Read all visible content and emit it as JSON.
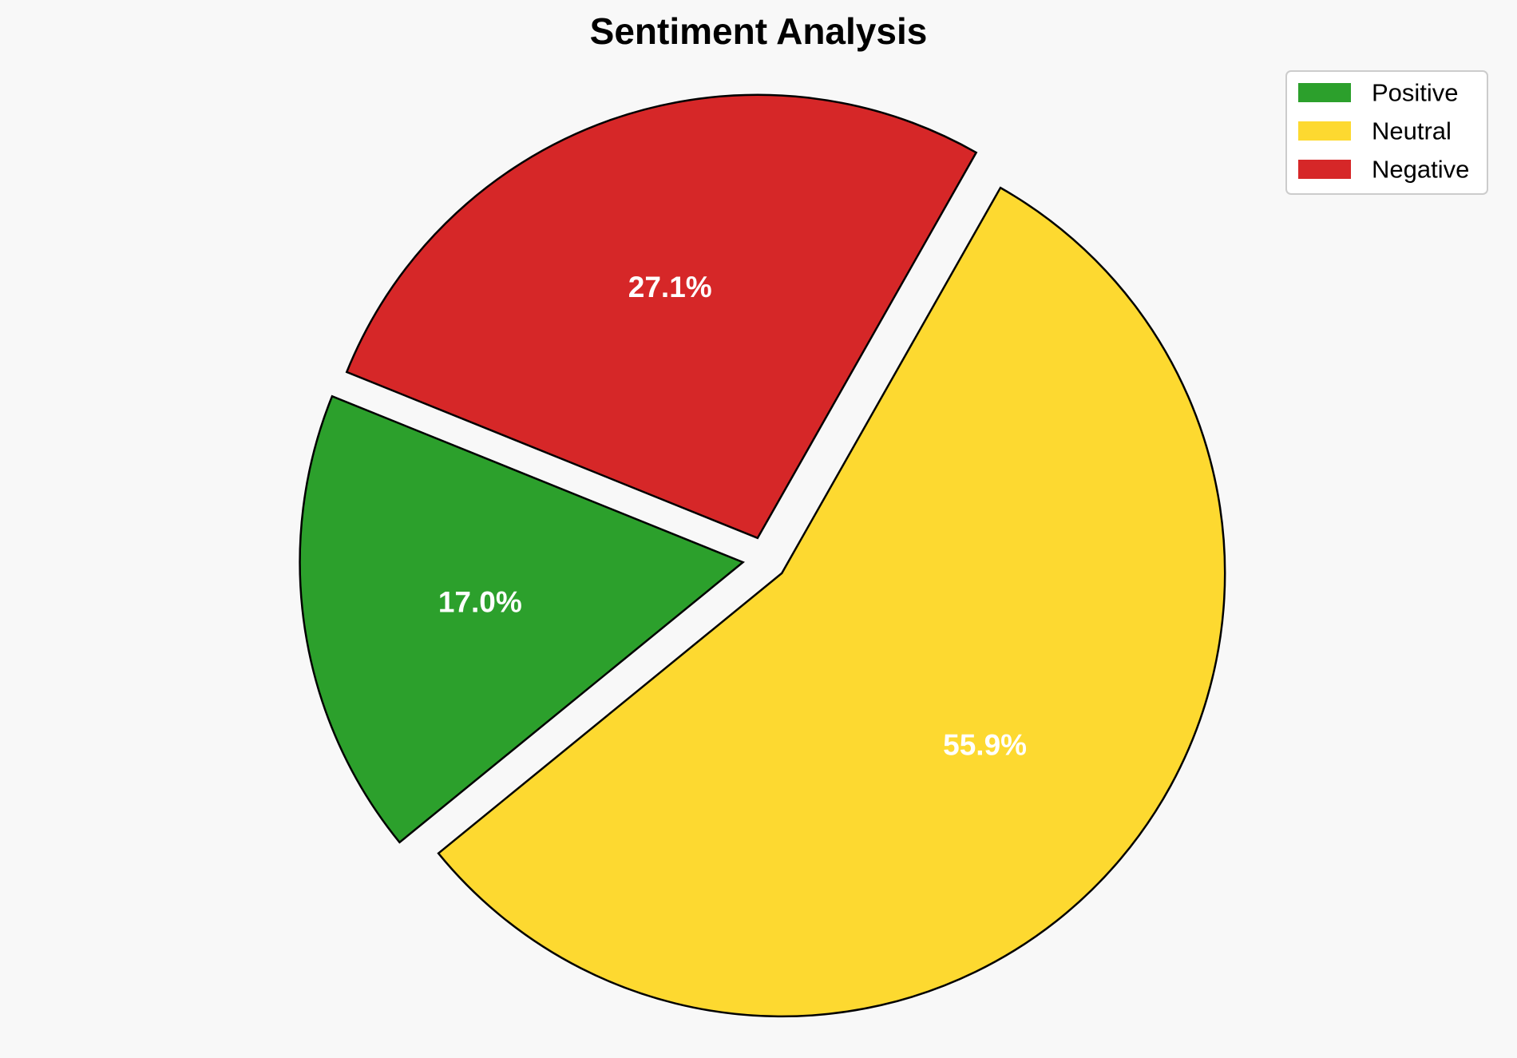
{
  "chart_data": {
    "type": "pie",
    "title": "Sentiment Analysis",
    "categories": [
      "Positive",
      "Neutral",
      "Negative"
    ],
    "values": [
      17.0,
      55.9,
      27.1
    ],
    "labels": [
      "17.0%",
      "55.9%",
      "27.1%"
    ],
    "colors": [
      "#2ca02c",
      "#fdd930",
      "#d62728"
    ],
    "edge_color": "#000000",
    "legend_placement": "top-right",
    "exploded": true
  }
}
